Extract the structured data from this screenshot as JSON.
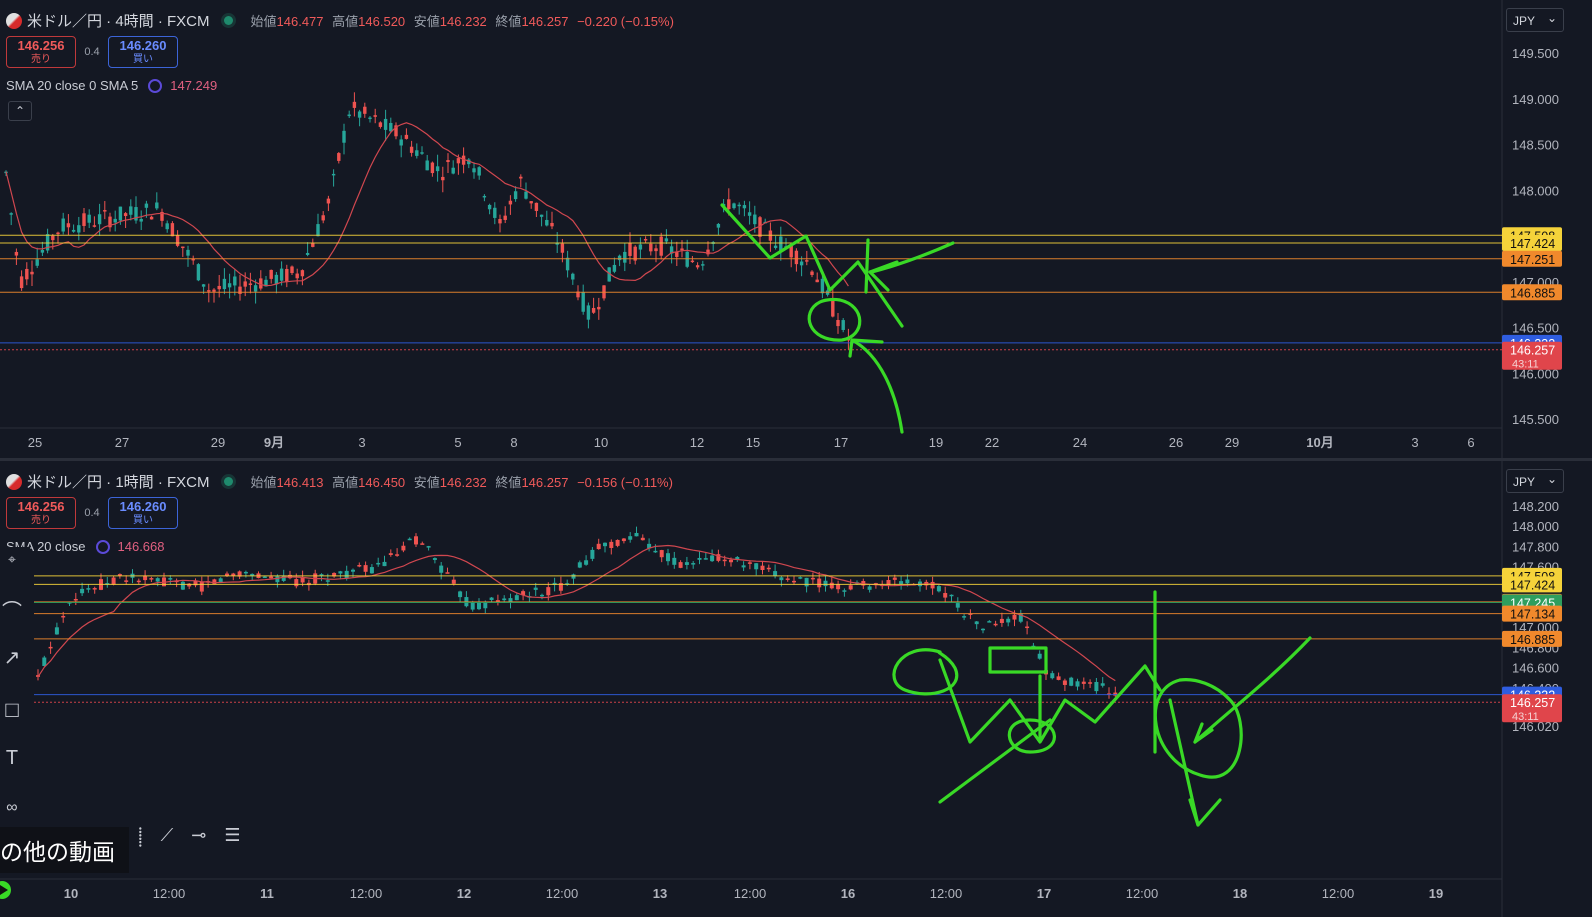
{
  "top": {
    "symbol": "米ドル／円 · 4時間 · FXCM",
    "ohlc": {
      "o_label": "始値",
      "o": "146.477",
      "h_label": "高値",
      "h": "146.520",
      "l_label": "安値",
      "l": "146.232",
      "c_label": "終値",
      "c": "146.257",
      "change": "−0.220 (−0.15%)"
    },
    "sell": {
      "price": "146.256",
      "label": "売り"
    },
    "buy": {
      "price": "146.260",
      "label": "買い"
    },
    "spread": "0.4",
    "indicator": {
      "name": "SMA 20 close 0 SMA 5",
      "value": "147.249"
    },
    "currency": "JPY",
    "collapse_glyph": "⌃",
    "y_ticks": [
      {
        "label": "149.500",
        "price": 149.5
      },
      {
        "label": "149.000",
        "price": 149.0
      },
      {
        "label": "148.500",
        "price": 148.5
      },
      {
        "label": "148.000",
        "price": 148.0
      },
      {
        "label": "147.000",
        "price": 147.0
      },
      {
        "label": "146.500",
        "price": 146.5
      },
      {
        "label": "146.000",
        "price": 146.0
      },
      {
        "label": "145.500",
        "price": 145.5
      }
    ],
    "price_tags": [
      {
        "label": "147.508",
        "price": 147.508,
        "color": "#f5d33a",
        "text": "#111"
      },
      {
        "label": "147.424",
        "price": 147.424,
        "color": "#f5d33a",
        "text": "#111"
      },
      {
        "label": "147.251",
        "price": 147.251,
        "color": "#f0892c",
        "text": "#111"
      },
      {
        "label": "146.885",
        "price": 146.885,
        "color": "#f0892c",
        "text": "#111"
      },
      {
        "label": "146.332",
        "price": 146.332,
        "color": "#2f5de0",
        "text": "#fff"
      },
      {
        "label": "146.257",
        "price": 146.257,
        "color": "#e0454b",
        "text": "#fff",
        "sub": "43:11"
      }
    ],
    "x_ticks": [
      "25",
      "27",
      "29",
      "9月",
      "3",
      "5",
      "8",
      "10",
      "12",
      "15",
      "17",
      "19",
      "22",
      "24",
      "26",
      "29",
      "10月",
      "3",
      "6"
    ]
  },
  "bottom": {
    "symbol": "米ドル／円 · 1時間 · FXCM",
    "ohlc": {
      "o_label": "始値",
      "o": "146.413",
      "h_label": "高値",
      "h": "146.450",
      "l_label": "安値",
      "l": "146.232",
      "c_label": "終値",
      "c": "146.257",
      "change": "−0.156 (−0.11%)"
    },
    "sell": {
      "price": "146.256",
      "label": "売り"
    },
    "buy": {
      "price": "146.260",
      "label": "買い"
    },
    "spread": "0.4",
    "indicator": {
      "name": "SMA 20 close",
      "value": "146.668"
    },
    "currency": "JPY",
    "y_ticks": [
      {
        "label": "148.200",
        "price": 148.2
      },
      {
        "label": "148.000",
        "price": 148.0
      },
      {
        "label": "147.800",
        "price": 147.8
      },
      {
        "label": "147.600",
        "price": 147.6
      },
      {
        "label": "147.000",
        "price": 147.0
      },
      {
        "label": "146.800",
        "price": 146.8
      },
      {
        "label": "146.600",
        "price": 146.6
      },
      {
        "label": "146.400",
        "price": 146.4
      },
      {
        "label": "146.020",
        "price": 146.02
      }
    ],
    "price_tags": [
      {
        "label": "147.508",
        "price": 147.508,
        "color": "#f5d33a",
        "text": "#111"
      },
      {
        "label": "147.424",
        "price": 147.424,
        "color": "#f5d33a",
        "text": "#111"
      },
      {
        "label": "147.251",
        "price": 147.251,
        "color": "#f0892c",
        "text": "#111"
      },
      {
        "label": "147.245",
        "price": 147.245,
        "color": "#2e9e5e",
        "text": "#fff"
      },
      {
        "label": "147.134",
        "price": 147.134,
        "color": "#f0892c",
        "text": "#111"
      },
      {
        "label": "146.885",
        "price": 146.885,
        "color": "#f0892c",
        "text": "#111"
      },
      {
        "label": "146.332",
        "price": 146.332,
        "color": "#2f5de0",
        "text": "#fff"
      },
      {
        "label": "146.257",
        "price": 146.257,
        "color": "#e0454b",
        "text": "#fff",
        "sub": "43:11"
      }
    ],
    "x_ticks": [
      "10",
      "12:00",
      "11",
      "12:00",
      "12",
      "12:00",
      "13",
      "12:00",
      "16",
      "12:00",
      "17",
      "12:00",
      "18",
      "12:00",
      "19"
    ],
    "video_label": "の他の動画"
  },
  "colors": {
    "up": "#26a69a",
    "down": "#ef5350",
    "sma": "#d0474f",
    "annotation": "#39d926",
    "grid": "#1d2230"
  }
}
